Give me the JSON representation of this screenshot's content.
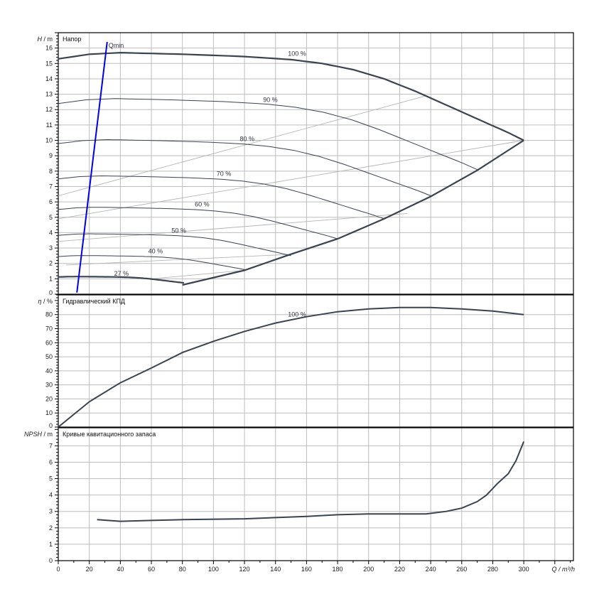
{
  "chart_data": [
    {
      "type": "line",
      "panel": "head",
      "title": "Напор",
      "ylabel_symbol": "H",
      "ylabel_unit": " / m",
      "xlim": [
        0,
        332
      ],
      "ylim": [
        0,
        17
      ],
      "yticks": [
        0,
        1,
        2,
        3,
        4,
        5,
        6,
        7,
        8,
        9,
        10,
        11,
        12,
        13,
        14,
        15,
        16
      ],
      "grid": true,
      "base_curve_100": [
        [
          0,
          15.3
        ],
        [
          20,
          15.6
        ],
        [
          40,
          15.7
        ],
        [
          80,
          15.6
        ],
        [
          120,
          15.45
        ],
        [
          150,
          15.25
        ],
        [
          170,
          15.0
        ],
        [
          190,
          14.6
        ],
        [
          210,
          14.0
        ],
        [
          230,
          13.2
        ],
        [
          250,
          12.3
        ],
        [
          270,
          11.4
        ],
        [
          290,
          10.5
        ],
        [
          300,
          10.0
        ]
      ],
      "speed_curves": [
        {
          "name": "100 %",
          "speed": 1.0,
          "label_at": [
            148,
            15.5
          ]
        },
        {
          "name": "90 %",
          "speed": 0.9,
          "label_at": [
            132,
            12.5
          ]
        },
        {
          "name": "80 %",
          "speed": 0.8,
          "label_at": [
            117,
            9.95
          ]
        },
        {
          "name": "70 %",
          "speed": 0.7,
          "label_at": [
            102,
            7.7
          ]
        },
        {
          "name": "60 %",
          "speed": 0.6,
          "label_at": [
            88,
            5.7
          ]
        },
        {
          "name": "50 %",
          "speed": 0.5,
          "label_at": [
            73,
            4.0
          ]
        },
        {
          "name": "40 %",
          "speed": 0.4,
          "label_at": [
            58,
            2.65
          ]
        },
        {
          "name": "27 %",
          "speed": 0.27,
          "label_at": [
            36,
            1.2
          ]
        }
      ],
      "limit_curve": [
        [
          80,
          0.6
        ],
        [
          120,
          1.55
        ],
        [
          150,
          2.6
        ],
        [
          180,
          3.6
        ],
        [
          210,
          4.9
        ],
        [
          240,
          6.35
        ],
        [
          270,
          8.05
        ],
        [
          300,
          10.0
        ]
      ],
      "efficiency_lines": [
        [
          [
            0,
            6.4
          ],
          [
            237,
            12.9
          ]
        ],
        [
          [
            0,
            4.9
          ],
          [
            300,
            10.0
          ]
        ],
        [
          [
            0,
            3.43
          ],
          [
            225,
            5.25
          ]
        ],
        [
          [
            5,
            1.9
          ],
          [
            152,
            2.6
          ]
        ],
        [
          [
            60,
            1.0
          ],
          [
            120,
            1.55
          ]
        ]
      ],
      "qmin": {
        "label": "Qmin",
        "points": [
          [
            12,
            0.1
          ],
          [
            31.5,
            16.4
          ]
        ],
        "color": "#0000ee"
      }
    },
    {
      "type": "line",
      "panel": "efficiency",
      "title": "Гидравлический КПД",
      "ylabel_symbol": "η",
      "ylabel_unit": " / %",
      "xlim": [
        0,
        332
      ],
      "ylim": [
        0,
        94
      ],
      "yticks": [
        0,
        10,
        20,
        30,
        40,
        50,
        60,
        70,
        80
      ],
      "grid": true,
      "series": [
        {
          "name": "100 %",
          "label_at": [
            148,
            78.5
          ],
          "points": [
            [
              0,
              0
            ],
            [
              20,
              18
            ],
            [
              40,
              31.5
            ],
            [
              60,
              42
            ],
            [
              80,
              53
            ],
            [
              100,
              61
            ],
            [
              120,
              68
            ],
            [
              140,
              74
            ],
            [
              160,
              78.5
            ],
            [
              180,
              82
            ],
            [
              200,
              84
            ],
            [
              220,
              85
            ],
            [
              240,
              85
            ],
            [
              260,
              84
            ],
            [
              280,
              82.5
            ],
            [
              300,
              80
            ]
          ]
        }
      ]
    },
    {
      "type": "line",
      "panel": "npsh",
      "title": "Кривые кавитационного запаса",
      "ylabel_symbol": "NPSH",
      "ylabel_unit": " / m",
      "xlabel": "Q / m³/h",
      "xlim": [
        0,
        332
      ],
      "ylim": [
        0,
        8.1
      ],
      "yticks": [
        0,
        1,
        2,
        3,
        4,
        5,
        6,
        7
      ],
      "xticks": [
        0,
        20,
        40,
        60,
        80,
        100,
        120,
        140,
        160,
        180,
        200,
        220,
        240,
        260,
        280,
        300
      ],
      "grid": true,
      "series": [
        {
          "name": "NPSH",
          "points": [
            [
              25,
              2.5
            ],
            [
              40,
              2.4
            ],
            [
              60,
              2.45
            ],
            [
              80,
              2.5
            ],
            [
              120,
              2.55
            ],
            [
              160,
              2.7
            ],
            [
              180,
              2.8
            ],
            [
              200,
              2.85
            ],
            [
              237,
              2.85
            ],
            [
              250,
              3.0
            ],
            [
              260,
              3.2
            ],
            [
              270,
              3.6
            ],
            [
              276,
              4.0
            ],
            [
              283,
              4.7
            ],
            [
              290,
              5.3
            ],
            [
              295,
              6.1
            ],
            [
              300,
              7.26
            ]
          ]
        }
      ]
    }
  ],
  "colors": {
    "curve": "#3a4350",
    "grid": "#bdbdbd",
    "eff_line": "#b5b5b5",
    "axis": "#000000"
  }
}
